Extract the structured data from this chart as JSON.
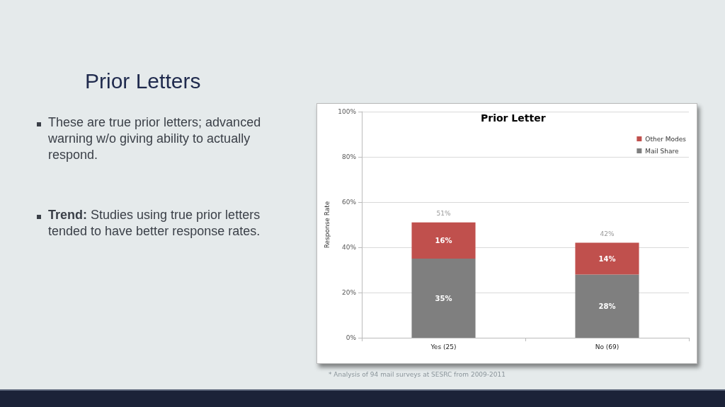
{
  "chart_data": {
    "type": "bar",
    "title": "Prior Letters",
    "subtitle": "Prior Letter",
    "ylabel": "Response Rate",
    "annotations": [
      "These are true prior letters; advanced warning w/o giving ability to actually respond.",
      "Trend: Studies using true prior letters tended to have better response rates.",
      "* Analysis of 94 mail surveys at SESRC from 2009-2011"
    ],
    "categories": [
      "Yes (25)",
      "No (69)"
    ],
    "series": [
      {
        "name": "Mail Share",
        "color": "#7f7f7f",
        "values": [
          35,
          28
        ],
        "value_labels": [
          "35%",
          "28%"
        ]
      },
      {
        "name": "Other Modes",
        "color": "#c0504d",
        "values": [
          16,
          14
        ],
        "value_labels": [
          "16%",
          "14%"
        ]
      }
    ],
    "stacked": true,
    "totals": [
      "51%",
      "42%"
    ],
    "ylim": [
      0,
      100
    ],
    "yticks": [
      {
        "value": 0,
        "label": "0%"
      },
      {
        "value": 20,
        "label": "20%"
      },
      {
        "value": 40,
        "label": "40%"
      },
      {
        "value": 60,
        "label": "60%"
      },
      {
        "value": 80,
        "label": "80%"
      },
      {
        "value": 100,
        "label": "100%"
      }
    ],
    "grid": "y",
    "legend": "top right"
  }
}
